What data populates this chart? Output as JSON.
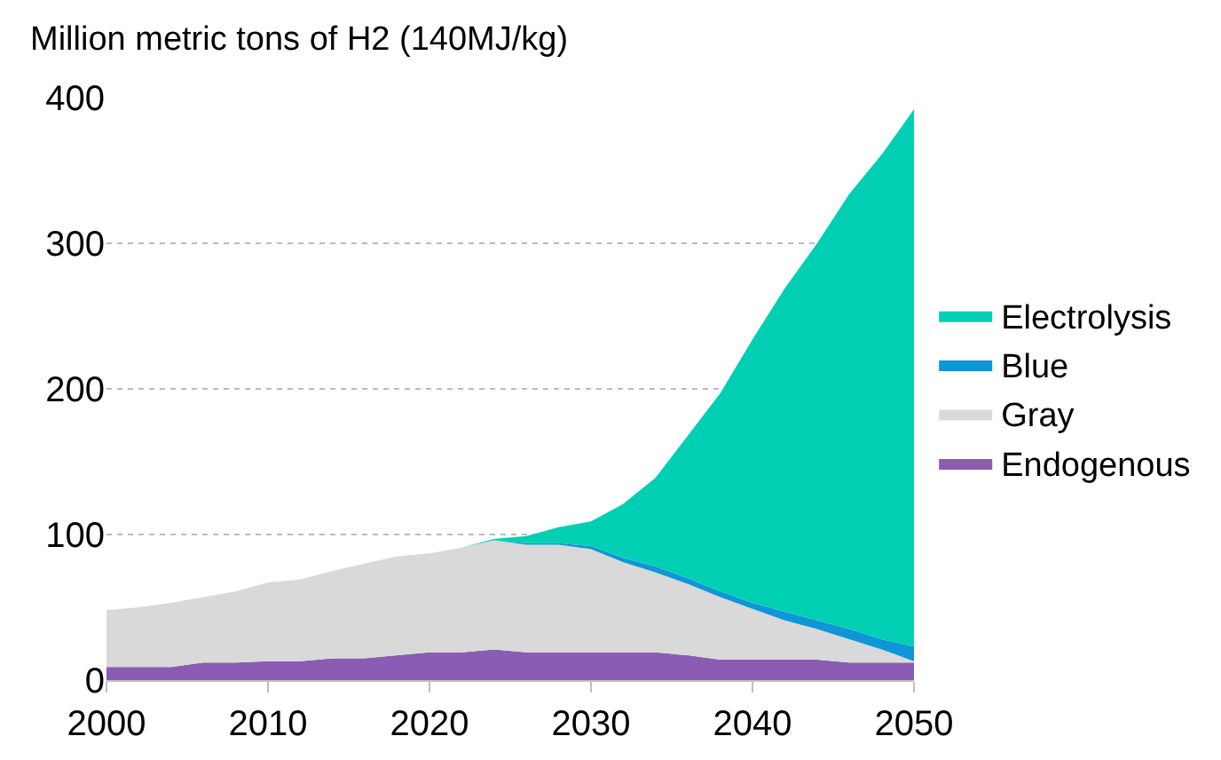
{
  "chart_data": {
    "type": "area",
    "stacked": true,
    "ylabel": "Million metric tons of H2 (140MJ/kg)",
    "x": [
      2000,
      2002,
      2004,
      2006,
      2008,
      2010,
      2012,
      2014,
      2016,
      2018,
      2020,
      2022,
      2024,
      2026,
      2028,
      2030,
      2032,
      2034,
      2036,
      2038,
      2040,
      2042,
      2044,
      2046,
      2048,
      2050
    ],
    "series": [
      {
        "name": "Endogenous",
        "color": "#8b5cb3",
        "values": [
          9,
          9,
          9,
          12,
          12,
          13,
          13,
          15,
          15,
          17,
          19,
          19,
          21,
          19,
          19,
          19,
          19,
          19,
          17,
          14,
          14,
          14,
          14,
          12,
          12,
          12
        ]
      },
      {
        "name": "Gray",
        "color": "#d9d9d9",
        "values": [
          39,
          41,
          44,
          45,
          49,
          54,
          56,
          60,
          65,
          68,
          68,
          72,
          75,
          74,
          74,
          71,
          62,
          55,
          49,
          43,
          35,
          27,
          21,
          16,
          9,
          1
        ]
      },
      {
        "name": "Blue",
        "color": "#0e96d6",
        "values": [
          0,
          0,
          0,
          0,
          0,
          0,
          0,
          0,
          0,
          0,
          0,
          0,
          0,
          1,
          1,
          2,
          3,
          4,
          4,
          4,
          4,
          6,
          6,
          7,
          7,
          10
        ]
      },
      {
        "name": "Electrolysis",
        "color": "#00cfb4",
        "values": [
          0,
          0,
          0,
          0,
          0,
          0,
          0,
          0,
          0,
          0,
          0,
          0,
          1,
          5,
          11,
          17,
          37,
          61,
          98,
          136,
          181,
          222,
          259,
          299,
          333,
          369
        ]
      }
    ],
    "xlim": [
      2000,
      2050
    ],
    "xticks": [
      2000,
      2010,
      2020,
      2030,
      2040,
      2050
    ],
    "ylim": [
      0,
      400
    ],
    "yticks": [
      0,
      100,
      200,
      300,
      400
    ],
    "grid": "y",
    "legend": "right"
  }
}
